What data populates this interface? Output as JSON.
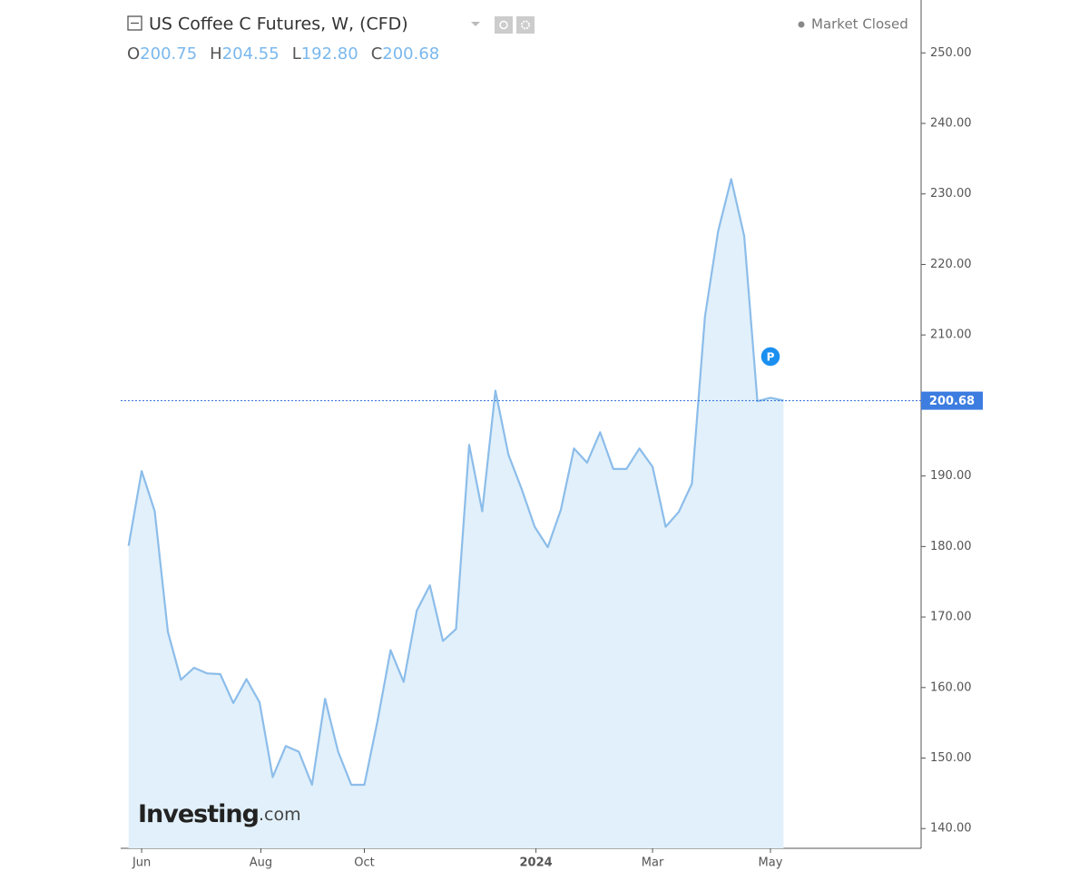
{
  "chart_data": {
    "type": "area",
    "title": "US Coffee C Futures, W, (CFD)",
    "ohlc": [
      {
        "label": "O",
        "value": "200.75"
      },
      {
        "label": "H",
        "value": "204.55"
      },
      {
        "label": "L",
        "value": "192.80"
      },
      {
        "label": "C",
        "value": "200.68"
      }
    ],
    "status": "Market Closed",
    "marker": "P",
    "watermark": [
      "Investing",
      ".com"
    ],
    "x": [
      0,
      1,
      2,
      3,
      4,
      5,
      6,
      7,
      8,
      9,
      10,
      11,
      12,
      13,
      14,
      15,
      16,
      17,
      18,
      19,
      20,
      21,
      22,
      23,
      24,
      25,
      26,
      27,
      28,
      29,
      30,
      31,
      32,
      33,
      34,
      35,
      36,
      37,
      38,
      39,
      40,
      41,
      42,
      43,
      44,
      45,
      46,
      47,
      48,
      49,
      50
    ],
    "series": [
      {
        "color": "#8cbdea",
        "fill": "#e1f0fa",
        "values": [
          180.1,
          190.7,
          185.0,
          167.9,
          161.1,
          162.8,
          162.0,
          161.9,
          157.8,
          161.2,
          157.9,
          147.3,
          151.7,
          150.9,
          146.2,
          158.4,
          150.9,
          146.2,
          146.2,
          155.2,
          165.3,
          160.8,
          170.9,
          174.5,
          166.6,
          168.3,
          194.4,
          185.0,
          202.1,
          193.0,
          188.2,
          182.8,
          179.9,
          185.2,
          193.9,
          191.9,
          196.2,
          191.0,
          191.0,
          193.9,
          191.3,
          182.8,
          184.9,
          188.9,
          212.6,
          224.7,
          232.1,
          224.0,
          200.6,
          201.1,
          200.7
        ]
      }
    ],
    "last_price": 200.68,
    "xlim": [
      -0.6,
      60.5
    ],
    "xticks": [
      {
        "value": 1,
        "label": "Jun"
      },
      {
        "value": 10.1,
        "label": "Aug"
      },
      {
        "value": 18,
        "label": "Oct"
      },
      {
        "value": 31.1,
        "label": "2024"
      },
      {
        "value": 40,
        "label": "Mar"
      },
      {
        "value": 49,
        "label": "May"
      }
    ],
    "ylim": [
      137.2,
      257.5
    ],
    "yticks": [
      {
        "value": 140,
        "label": "140.00"
      },
      {
        "value": 150,
        "label": "150.00"
      },
      {
        "value": 160,
        "label": "160.00"
      },
      {
        "value": 170,
        "label": "170.00"
      },
      {
        "value": 180,
        "label": "180.00"
      },
      {
        "value": 190,
        "label": "190.00"
      },
      {
        "value": 200,
        "label": "200.00"
      },
      {
        "value": 210,
        "label": "210.00"
      },
      {
        "value": 220,
        "label": "220.00"
      },
      {
        "value": 230,
        "label": "230.00"
      },
      {
        "value": 240,
        "label": "240.00"
      },
      {
        "value": 250,
        "label": "250.00"
      }
    ]
  }
}
